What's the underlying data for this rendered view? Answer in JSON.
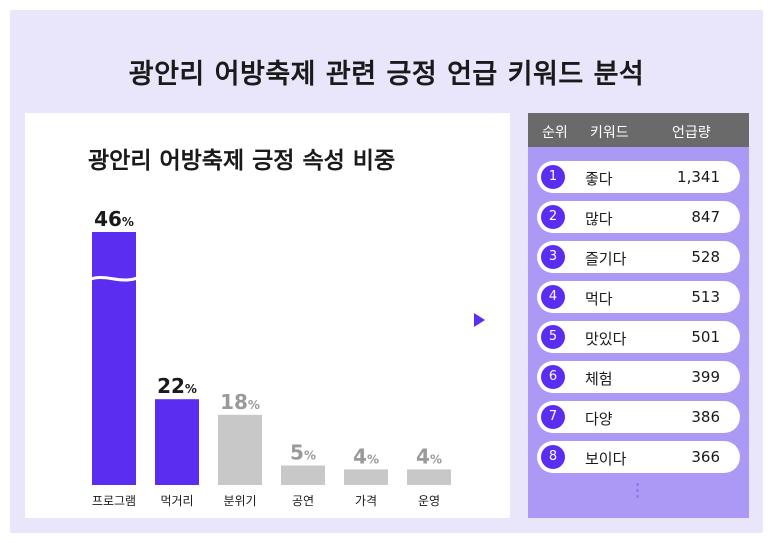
{
  "title": "광안리 어방축제 관련 긍정 언급 키워드 분석",
  "colors": {
    "background": "#e9e6fb",
    "highlight": "#5a2df0",
    "muted": "#c8c8c8",
    "table_bg": "#ac99f5",
    "header_bg": "#6a6a6a"
  },
  "chart_data": {
    "type": "bar",
    "title": "광안리 어방축제 긍정 속성 비중",
    "categories": [
      "프로그램",
      "먹거리",
      "분위기",
      "공연",
      "가격",
      "운영"
    ],
    "values": [
      46,
      22,
      18,
      5,
      4,
      4
    ],
    "value_labels": [
      "46",
      "22",
      "18",
      "5",
      "4",
      "4"
    ],
    "unit": "%",
    "highlighted": [
      true,
      true,
      false,
      false,
      false,
      false
    ],
    "axis_break_on_first_bar": true
  },
  "keyword_table": {
    "columns": [
      "순위",
      "키워드",
      "언급량"
    ],
    "rows": [
      {
        "rank": "1",
        "keyword": "좋다",
        "count": "1,341"
      },
      {
        "rank": "2",
        "keyword": "많다",
        "count": "847"
      },
      {
        "rank": "3",
        "keyword": "즐기다",
        "count": "528"
      },
      {
        "rank": "4",
        "keyword": "먹다",
        "count": "513"
      },
      {
        "rank": "5",
        "keyword": "맛있다",
        "count": "501"
      },
      {
        "rank": "6",
        "keyword": "체험",
        "count": "399"
      },
      {
        "rank": "7",
        "keyword": "다양",
        "count": "386"
      },
      {
        "rank": "8",
        "keyword": "보이다",
        "count": "366"
      }
    ]
  }
}
